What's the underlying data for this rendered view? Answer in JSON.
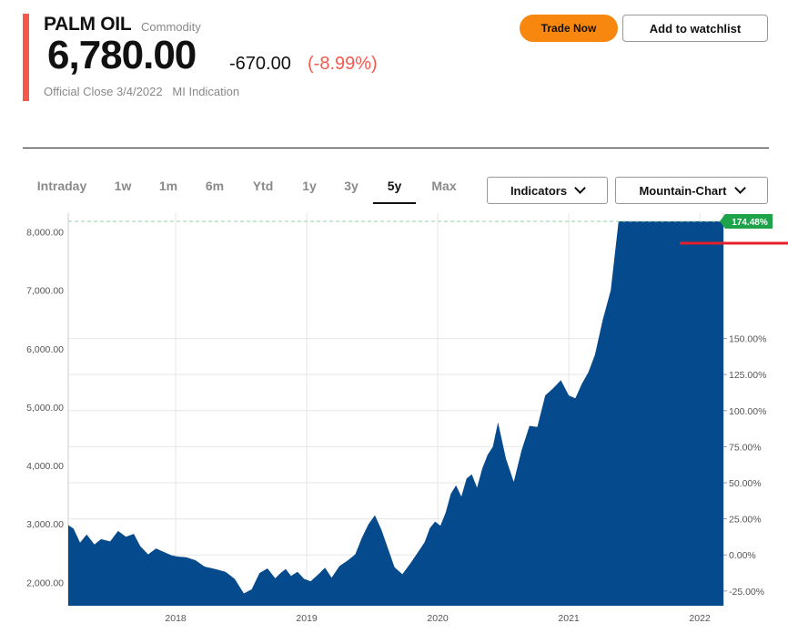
{
  "header": {
    "title": "PALM OIL",
    "asset_type": "Commodity",
    "price": "6,780.00",
    "change": "-670.00",
    "change_pct": "(-8.99%)",
    "official_close": "Official Close 3/4/2022",
    "source": "MI Indication",
    "accent_color": "#f5584d",
    "negative_color": "#f5584d"
  },
  "actions": {
    "trade_label": "Trade Now",
    "watchlist_label": "Add to watchlist",
    "trade_color": "#f7870f"
  },
  "range_tabs": [
    {
      "label": "Intraday",
      "active": false
    },
    {
      "label": "1w",
      "active": false
    },
    {
      "label": "1m",
      "active": false
    },
    {
      "label": "6m",
      "active": false
    },
    {
      "label": "Ytd",
      "active": false
    },
    {
      "label": "1y",
      "active": false
    },
    {
      "label": "3y",
      "active": false
    },
    {
      "label": "5y",
      "active": true
    },
    {
      "label": "Max",
      "active": false
    }
  ],
  "dropdowns": {
    "indicators_label": "Indicators",
    "chart_type_label": "Mountain-Chart",
    "chevron_icon": "chevron-down-icon"
  },
  "chart_data": {
    "type": "area",
    "fill_color": "#054a8c",
    "x_labels": [
      "2018",
      "2019",
      "2020",
      "2021",
      "2022"
    ],
    "y_left_ticks": [
      "8,000.00",
      "7,000.00",
      "6,000.00",
      "5,000.00",
      "4,000.00",
      "3,000.00",
      "2,000.00"
    ],
    "y_left_values": [
      8000,
      7000,
      6000,
      5000,
      4000,
      3000,
      2000
    ],
    "y_right_ticks": [
      "150.00%",
      "125.00%",
      "100.00%",
      "75.00%",
      "50.00%",
      "25.00%",
      "0.00%",
      "-25.00%"
    ],
    "y_right_values": [
      150,
      125,
      100,
      75,
      50,
      25,
      0,
      -25
    ],
    "ylim": [
      1600,
      8320
    ],
    "xlim": [
      2017.18,
      2022.18
    ],
    "badge": "174.48%",
    "badge_color": "#1fa34a",
    "series": [
      {
        "x": [
          2017.18,
          2017.22,
          2017.27,
          2017.32,
          2017.38,
          2017.43,
          2017.5,
          2017.56,
          2017.62,
          2017.68,
          2017.73,
          2017.79,
          2017.85,
          2017.91,
          2017.97,
          2018.02,
          2018.08,
          2018.15,
          2018.22,
          2018.3,
          2018.38,
          2018.45,
          2018.52,
          2018.58,
          2018.64,
          2018.7,
          2018.76,
          2018.8,
          2018.84,
          2018.88,
          2018.93,
          2018.98,
          2019.03,
          2019.09,
          2019.14,
          2019.19,
          2019.25,
          2019.31,
          2019.37,
          2019.42,
          2019.47,
          2019.52,
          2019.57,
          2019.62,
          2019.67,
          2019.73,
          2019.79,
          2019.85,
          2019.9,
          2019.94,
          2019.98,
          2020.02,
          2020.06,
          2020.1,
          2020.14,
          2020.18,
          2020.22,
          2020.26,
          2020.3,
          2020.34,
          2020.38,
          2020.42,
          2020.46,
          2020.52,
          2020.58,
          2020.64,
          2020.7,
          2020.76,
          2020.82,
          2020.88,
          2020.94,
          2021.0,
          2021.05,
          2021.1,
          2021.15,
          2021.2,
          2021.26,
          2021.32,
          2021.38,
          2021.44,
          2021.5,
          2021.56,
          2021.62,
          2021.68,
          2021.74,
          2021.8,
          2021.86,
          2021.9,
          2021.94,
          2021.98,
          2022.02,
          2022.06,
          2022.09,
          2022.11,
          2022.13,
          2022.15,
          2022.16,
          2022.17,
          2022.18
        ],
        "y": [
          2980,
          2920,
          2680,
          2820,
          2650,
          2740,
          2700,
          2880,
          2780,
          2830,
          2620,
          2480,
          2580,
          2520,
          2460,
          2440,
          2430,
          2380,
          2270,
          2230,
          2180,
          2060,
          1810,
          1880,
          2160,
          2240,
          2070,
          2160,
          2230,
          2110,
          2180,
          2060,
          2020,
          2140,
          2250,
          2080,
          2280,
          2370,
          2480,
          2760,
          2990,
          3150,
          2900,
          2580,
          2260,
          2140,
          2320,
          2520,
          2690,
          2930,
          3040,
          2970,
          3190,
          3520,
          3660,
          3470,
          3780,
          3850,
          3620,
          3950,
          4180,
          4320,
          4740,
          4120,
          3720,
          4260,
          4680,
          4660,
          5200,
          5320,
          5460,
          5200,
          5150,
          5400,
          5600,
          5900,
          6500,
          7000,
          8180,
          8180,
          8180,
          8180,
          8180,
          8180,
          8180,
          8180,
          8180,
          8180,
          8180,
          8180,
          8180,
          8180,
          8180,
          8180,
          8180,
          8180,
          8180,
          8180,
          8180
        ]
      }
    ]
  }
}
